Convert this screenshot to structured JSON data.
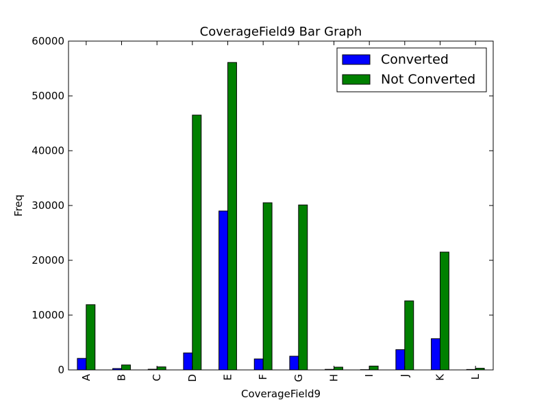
{
  "chart_data": {
    "type": "bar",
    "title": "CoverageField9 Bar Graph",
    "xlabel": "CoverageField9",
    "ylabel": "Freq",
    "categories": [
      "A",
      "B",
      "C",
      "D",
      "E",
      "F",
      "G",
      "H",
      "I",
      "J",
      "K",
      "L"
    ],
    "series": [
      {
        "name": "Converted",
        "color": "#0000ff",
        "values": [
          2100,
          250,
          120,
          3100,
          29000,
          2000,
          2500,
          100,
          50,
          3700,
          5700,
          80
        ]
      },
      {
        "name": "Not Converted",
        "color": "#008000",
        "values": [
          11900,
          900,
          550,
          46500,
          56100,
          30500,
          30100,
          500,
          700,
          12600,
          21500,
          300
        ]
      }
    ],
    "ylim": [
      0,
      60000
    ],
    "yticks": [
      0,
      10000,
      20000,
      30000,
      40000,
      50000,
      60000
    ],
    "grid": false,
    "legend_position": "top-right"
  }
}
